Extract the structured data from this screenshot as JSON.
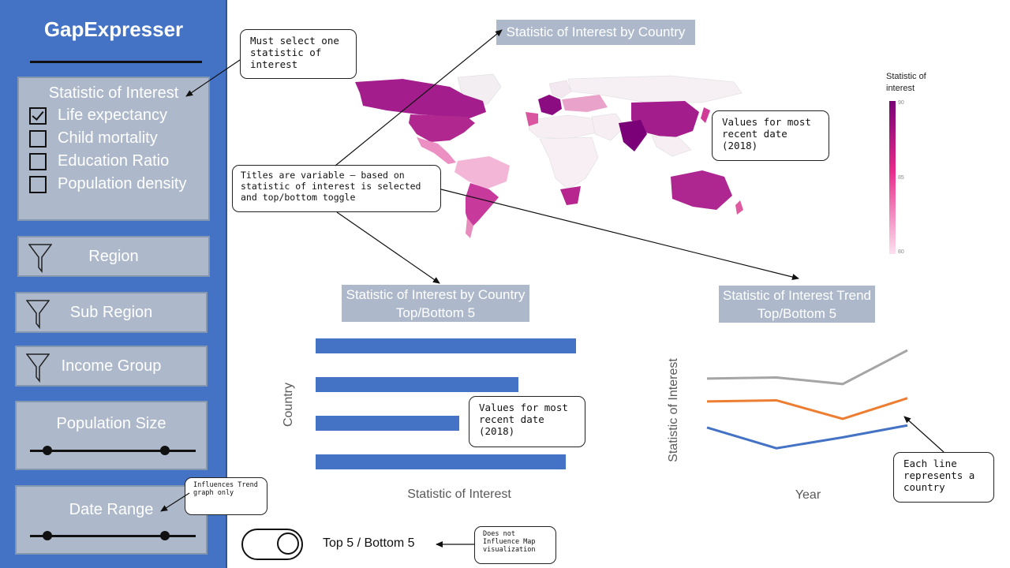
{
  "sidebar": {
    "app_title": "GapExpresser",
    "statistic_panel": {
      "title": "Statistic of Interest",
      "options": [
        {
          "label": "Life expectancy",
          "checked": true
        },
        {
          "label": "Child mortality",
          "checked": false
        },
        {
          "label": "Education Ratio",
          "checked": false
        },
        {
          "label": "Population density",
          "checked": false
        }
      ]
    },
    "filters": {
      "region": "Region",
      "sub_region": "Sub Region",
      "income_group": "Income Group"
    },
    "population_size": {
      "label": "Population Size"
    },
    "date_range": {
      "label": "Date Range"
    }
  },
  "toggle": {
    "label": "Top 5 / Bottom 5"
  },
  "callouts": {
    "select_one": "Must select one statistic of interest",
    "titles_variable": "Titles are variable – based on statistic of interest is selected and top/bottom toggle",
    "map_values": "Values for most recent date (2018)",
    "bar_values": "Values for most recent date (2018)",
    "each_line": "Each line represents a country",
    "date_range_note": "Influences Trend graph only",
    "toggle_note": "Does not Influence Map visualization"
  },
  "map": {
    "title": "Statistic of Interest by Country",
    "legend_title": "Statistic of interest",
    "legend_ticks": [
      "90",
      "85",
      "80"
    ],
    "colors": {
      "high": "#7a0177",
      "mid": "#e7298a",
      "low": "#fde0ef"
    }
  },
  "bar_chart": {
    "title_line1": "Statistic of Interest by Country",
    "title_line2": "Top/Bottom 5",
    "ylabel": "Country",
    "xlabel": "Statistic of Interest"
  },
  "trend_chart": {
    "title_line1": "Statistic of Interest Trend",
    "title_line2": "Top/Bottom 5",
    "ylabel": "Statistic of Interest",
    "xlabel": "Year"
  },
  "chart_data": [
    {
      "type": "bar",
      "orientation": "horizontal",
      "values": [
        100,
        78,
        55,
        96
      ],
      "colors": [
        "#4472c4"
      ],
      "xlabel": "Statistic of Interest",
      "ylabel": "Country"
    },
    {
      "type": "line",
      "x": [
        0,
        1,
        2,
        3
      ],
      "series": [
        {
          "color": "#a5a5a5",
          "values": [
            0.74,
            0.75,
            0.69,
            1.0
          ]
        },
        {
          "color": "#ed7d31",
          "values": [
            0.53,
            0.54,
            0.37,
            0.56
          ]
        },
        {
          "color": "#4472c4",
          "values": [
            0.29,
            0.1,
            0.2,
            0.31
          ]
        }
      ],
      "xlabel": "Year",
      "ylabel": "Statistic of Interest"
    }
  ]
}
